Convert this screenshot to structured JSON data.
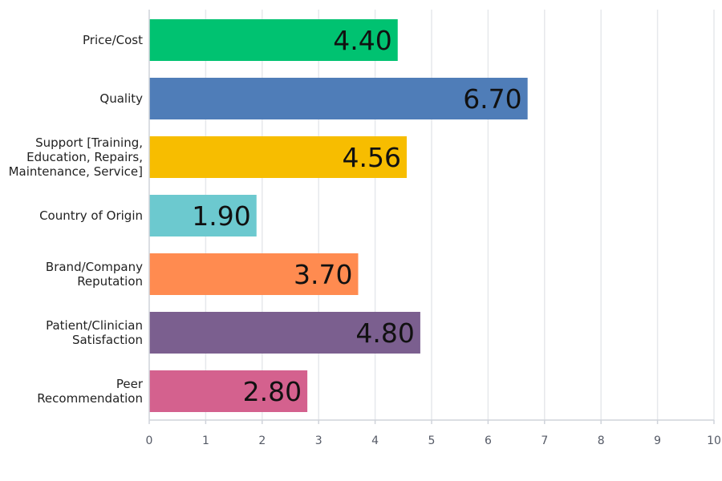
{
  "chart_data": {
    "type": "bar",
    "orientation": "horizontal",
    "title": "",
    "xlabel": "",
    "ylabel": "",
    "xlim": [
      0,
      10
    ],
    "grid": true,
    "legend": "none",
    "x_ticks": [
      "0",
      "1",
      "2",
      "3",
      "4",
      "5",
      "6",
      "7",
      "8",
      "9",
      "10"
    ],
    "categories": [
      [
        "Price/Cost"
      ],
      [
        "Quality"
      ],
      [
        "Support [Training,",
        "Education, Repairs,",
        "Maintenance, Service]"
      ],
      [
        "Country of Origin"
      ],
      [
        "Brand/Company",
        "Reputation"
      ],
      [
        "Patient/Clinician",
        "Satisfaction"
      ],
      [
        "Peer",
        "Recommendation"
      ]
    ],
    "values": [
      4.4,
      6.7,
      4.56,
      1.9,
      3.7,
      4.8,
      2.8
    ],
    "value_labels": [
      "4.40",
      "6.70",
      "4.56",
      "1.90",
      "3.70",
      "4.80",
      "2.80"
    ],
    "colors": [
      "#00c271",
      "#4f7db8",
      "#f7bd00",
      "#6cc9cf",
      "#ff8b50",
      "#7b5f8f",
      "#d4618e"
    ],
    "gridline_color": "#e6e8ec",
    "axis_color": "#cfd3da"
  }
}
